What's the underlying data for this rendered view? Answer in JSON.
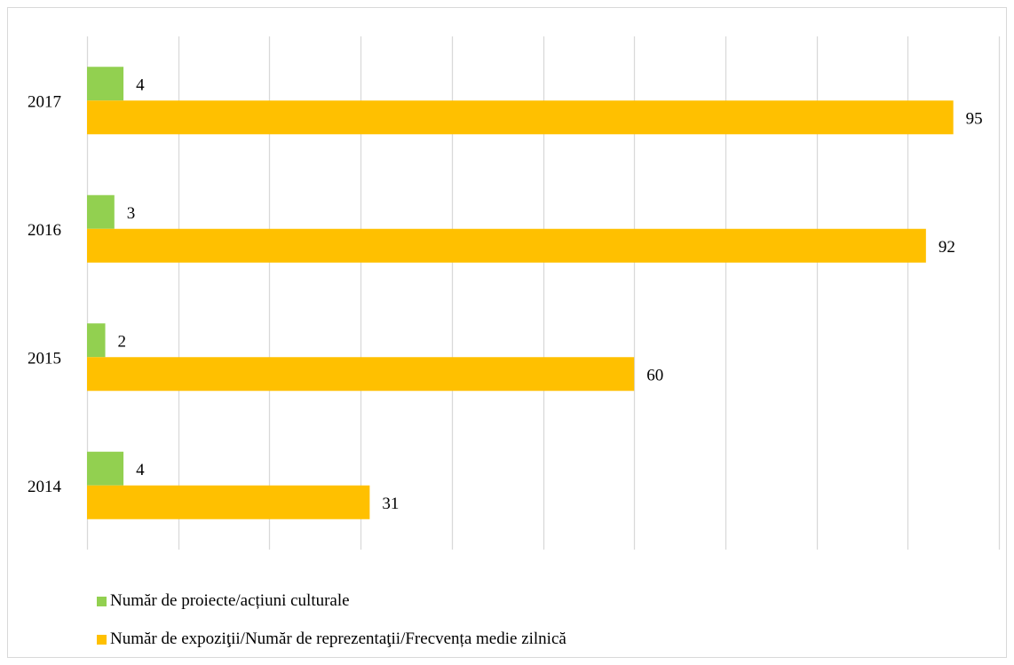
{
  "chart_data": {
    "type": "bar",
    "orientation": "horizontal",
    "categories": [
      "2014",
      "2015",
      "2016",
      "2017"
    ],
    "series": [
      {
        "name": "Număr de proiecte/acțiuni culturale",
        "values": [
          4,
          2,
          3,
          4
        ],
        "color": "#92d050"
      },
      {
        "name": "Număr de expoziţii/Număr de reprezentaţii/Frecvența medie zilnică",
        "values": [
          31,
          60,
          92,
          95
        ],
        "color": "#ffc000"
      }
    ],
    "xlim": [
      0,
      100
    ],
    "x_gridline_step": 10,
    "grid": true,
    "gridline_color": "#d9d9d9",
    "legend_position": "bottom-left",
    "title": "",
    "xlabel": "",
    "ylabel": ""
  }
}
